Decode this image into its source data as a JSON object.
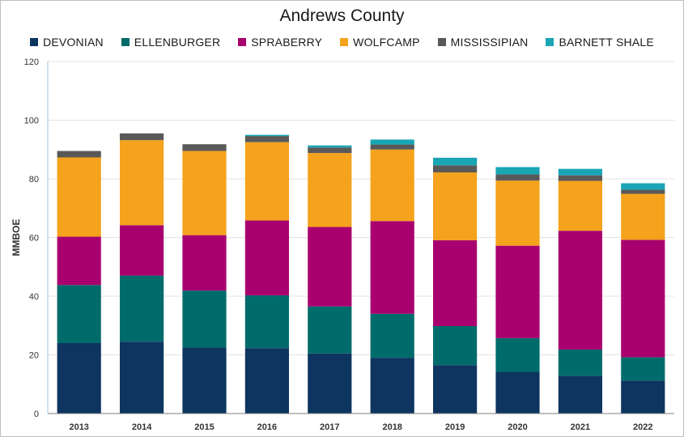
{
  "chart_data": {
    "type": "bar",
    "stacked": true,
    "title": "Andrews County",
    "ylabel": "MMBOE",
    "xlabel": "",
    "ylim": [
      0,
      120
    ],
    "yticks": [
      0,
      20,
      40,
      60,
      80,
      100,
      120
    ],
    "grid": true,
    "legend_position": "top",
    "categories": [
      "2013",
      "2014",
      "2015",
      "2016",
      "2017",
      "2018",
      "2019",
      "2020",
      "2021",
      "2022"
    ],
    "series": [
      {
        "name": "DEVONIAN",
        "color": "#0d3560",
        "values": [
          24,
          24.5,
          22.5,
          22.3,
          20.5,
          19,
          16.5,
          14.2,
          12.8,
          11.2
        ]
      },
      {
        "name": "ELLENBURGER",
        "color": "#006b6b",
        "values": [
          19.8,
          22.5,
          19.4,
          18,
          16,
          15,
          13.3,
          11.5,
          9,
          8
        ]
      },
      {
        "name": "SPRABERRY",
        "color": "#a8006e",
        "values": [
          16.5,
          17.2,
          18.9,
          25.5,
          27.1,
          31.6,
          29.3,
          31.5,
          40.5,
          40
        ]
      },
      {
        "name": "WOLFCAMP",
        "color": "#f5a21c",
        "values": [
          27,
          29,
          28.7,
          26.7,
          25.2,
          24.4,
          23.1,
          22.2,
          17,
          15.7
        ]
      },
      {
        "name": "MISSISSIPIAN",
        "color": "#595959",
        "values": [
          2.2,
          2.3,
          2.3,
          2.1,
          1.9,
          1.7,
          2.4,
          2.1,
          1.9,
          1.4
        ]
      },
      {
        "name": "BARNETT SHALE",
        "color": "#1aa5b5",
        "values": [
          0,
          0,
          0,
          0.4,
          0.7,
          1.7,
          2.6,
          2.5,
          2.2,
          2.2
        ]
      }
    ]
  }
}
